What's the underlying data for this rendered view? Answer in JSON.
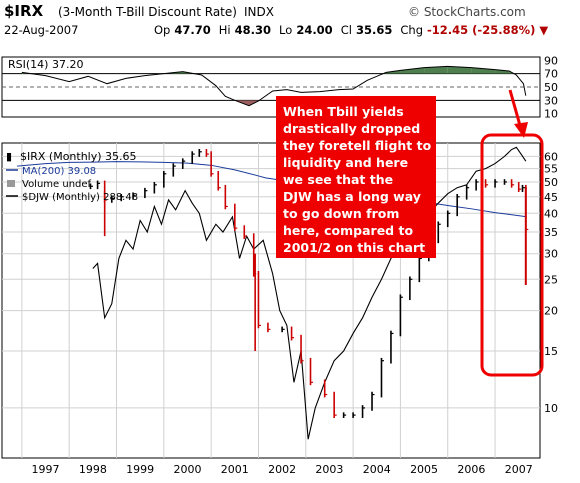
{
  "header": {
    "ticker": "$IRX",
    "description": "(3-Month T-Bill Discount Rate)",
    "exchange": "INDX",
    "brand": "© StockCharts.com",
    "date": "22-Aug-2007",
    "open_label": "Op",
    "open": "47.70",
    "high_label": "Hi",
    "high": "48.30",
    "low_label": "Lo",
    "low": "24.00",
    "close_label": "Cl",
    "close": "35.65",
    "chg_label": "Chg",
    "chg": "-12.45 (-25.88%)"
  },
  "colors": {
    "up": "#000000",
    "down": "#cc0000",
    "ma": "#1a3a9a",
    "djw": "#000000",
    "rsi_hi_fill": "#4f7f4f",
    "rsi_lo_fill": "#9a6060",
    "annot_bg": "#ee0000",
    "highlight": "#ee0000"
  },
  "chart_data": [
    {
      "type": "line",
      "title": "RSI(14) 37.20",
      "series": [
        {
          "name": "RSI(14)",
          "values": [
            {
              "x": 1997.0,
              "y": 72
            },
            {
              "x": 1997.5,
              "y": 67
            },
            {
              "x": 1998.0,
              "y": 58
            },
            {
              "x": 1998.4,
              "y": 66
            },
            {
              "x": 1998.8,
              "y": 55
            },
            {
              "x": 1999.2,
              "y": 63
            },
            {
              "x": 1999.6,
              "y": 67
            },
            {
              "x": 2000.0,
              "y": 70
            },
            {
              "x": 2000.4,
              "y": 73
            },
            {
              "x": 2000.8,
              "y": 68
            },
            {
              "x": 2001.1,
              "y": 52
            },
            {
              "x": 2001.3,
              "y": 36
            },
            {
              "x": 2001.5,
              "y": 30
            },
            {
              "x": 2001.8,
              "y": 22
            },
            {
              "x": 2002.0,
              "y": 29
            },
            {
              "x": 2002.3,
              "y": 44
            },
            {
              "x": 2002.6,
              "y": 46
            },
            {
              "x": 2002.9,
              "y": 42
            },
            {
              "x": 2003.3,
              "y": 43
            },
            {
              "x": 2003.7,
              "y": 46
            },
            {
              "x": 2004.0,
              "y": 47
            },
            {
              "x": 2004.3,
              "y": 60
            },
            {
              "x": 2004.7,
              "y": 72
            },
            {
              "x": 2005.0,
              "y": 75
            },
            {
              "x": 2005.5,
              "y": 79
            },
            {
              "x": 2006.0,
              "y": 81
            },
            {
              "x": 2006.5,
              "y": 79
            },
            {
              "x": 2007.0,
              "y": 76
            },
            {
              "x": 2007.3,
              "y": 74
            },
            {
              "x": 2007.45,
              "y": 68
            },
            {
              "x": 2007.6,
              "y": 55
            },
            {
              "x": 2007.65,
              "y": 37
            }
          ]
        }
      ],
      "levels": [
        30,
        50,
        70
      ],
      "y_ticks": [
        10,
        30,
        50,
        70,
        90
      ],
      "ylim": [
        5,
        95
      ]
    },
    {
      "type": "line",
      "title": "$IRX (Monthly) 35.65",
      "legend": [
        "$IRX (Monthly) 35.65",
        "MA(200) 39.08",
        "Volume undef",
        "$DJW (Monthly) 288.48"
      ],
      "x_ticks": [
        "1997",
        "1998",
        "1999",
        "2000",
        "2001",
        "2002",
        "2003",
        "2004",
        "2005",
        "2006",
        "2007"
      ],
      "y_ticks": [
        10,
        15,
        20,
        25,
        30,
        35,
        40,
        45,
        50,
        55,
        60
      ],
      "ylim": [
        7,
        66
      ],
      "series": [
        {
          "name": "$IRX (Monthly)",
          "values": [
            {
              "x": 1998.45,
              "y": 48.5
            },
            {
              "x": 1998.6,
              "y": 49.5
            },
            {
              "x": 1998.75,
              "y": 44
            },
            {
              "x": 1998.9,
              "y": 44.5
            },
            {
              "x": 1999.1,
              "y": 45
            },
            {
              "x": 1999.35,
              "y": 45.5
            },
            {
              "x": 1999.6,
              "y": 47
            },
            {
              "x": 1999.8,
              "y": 49
            },
            {
              "x": 2000.0,
              "y": 53
            },
            {
              "x": 2000.2,
              "y": 56
            },
            {
              "x": 2000.4,
              "y": 58
            },
            {
              "x": 2000.6,
              "y": 61
            },
            {
              "x": 2000.75,
              "y": 62
            },
            {
              "x": 2000.9,
              "y": 61
            },
            {
              "x": 2001.0,
              "y": 53
            },
            {
              "x": 2001.15,
              "y": 48
            },
            {
              "x": 2001.3,
              "y": 42
            },
            {
              "x": 2001.5,
              "y": 36
            },
            {
              "x": 2001.7,
              "y": 34
            },
            {
              "x": 2001.9,
              "y": 26
            },
            {
              "x": 2002.0,
              "y": 18
            },
            {
              "x": 2002.2,
              "y": 17.5
            },
            {
              "x": 2002.5,
              "y": 17.5
            },
            {
              "x": 2002.7,
              "y": 16.5
            },
            {
              "x": 2002.9,
              "y": 14
            },
            {
              "x": 2003.1,
              "y": 12
            },
            {
              "x": 2003.4,
              "y": 11
            },
            {
              "x": 2003.6,
              "y": 9.5
            },
            {
              "x": 2003.8,
              "y": 9.5
            },
            {
              "x": 2004.0,
              "y": 9.5
            },
            {
              "x": 2004.2,
              "y": 10
            },
            {
              "x": 2004.4,
              "y": 11
            },
            {
              "x": 2004.6,
              "y": 14
            },
            {
              "x": 2004.8,
              "y": 17
            },
            {
              "x": 2005.0,
              "y": 22
            },
            {
              "x": 2005.2,
              "y": 25
            },
            {
              "x": 2005.4,
              "y": 29
            },
            {
              "x": 2005.6,
              "y": 33
            },
            {
              "x": 2005.8,
              "y": 37
            },
            {
              "x": 2006.0,
              "y": 40
            },
            {
              "x": 2006.2,
              "y": 45
            },
            {
              "x": 2006.4,
              "y": 48
            },
            {
              "x": 2006.6,
              "y": 50
            },
            {
              "x": 2006.8,
              "y": 49
            },
            {
              "x": 2007.0,
              "y": 50
            },
            {
              "x": 2007.2,
              "y": 50
            },
            {
              "x": 2007.35,
              "y": 49
            },
            {
              "x": 2007.5,
              "y": 47.5
            },
            {
              "x": 2007.58,
              "y": 48
            },
            {
              "x": 2007.65,
              "y": 35.65
            }
          ]
        },
        {
          "name": "MA(200)",
          "values": [
            {
              "x": 1996.9,
              "y": 56
            },
            {
              "x": 1997.5,
              "y": 57
            },
            {
              "x": 1998.0,
              "y": 57.5
            },
            {
              "x": 1998.5,
              "y": 57.6
            },
            {
              "x": 1999.0,
              "y": 57.8
            },
            {
              "x": 1999.5,
              "y": 57.7
            },
            {
              "x": 2000.0,
              "y": 57.5
            },
            {
              "x": 2000.5,
              "y": 57.2
            },
            {
              "x": 2001.0,
              "y": 56.3
            },
            {
              "x": 2001.5,
              "y": 54.5
            },
            {
              "x": 2002.0,
              "y": 52.2
            },
            {
              "x": 2002.15,
              "y": 51.5
            },
            {
              "x": 2006.0,
              "y": 42.3
            },
            {
              "x": 2006.5,
              "y": 41.3
            },
            {
              "x": 2007.0,
              "y": 40.2
            },
            {
              "x": 2007.65,
              "y": 39.08
            }
          ]
        },
        {
          "name": "$DJW (Monthly)",
          "values": [
            {
              "x": 1998.5,
              "y": 27
            },
            {
              "x": 1998.6,
              "y": 28
            },
            {
              "x": 1998.75,
              "y": 19
            },
            {
              "x": 1998.9,
              "y": 21
            },
            {
              "x": 1999.05,
              "y": 29
            },
            {
              "x": 1999.2,
              "y": 33
            },
            {
              "x": 1999.35,
              "y": 31
            },
            {
              "x": 1999.5,
              "y": 38
            },
            {
              "x": 1999.65,
              "y": 35
            },
            {
              "x": 1999.8,
              "y": 42
            },
            {
              "x": 1999.95,
              "y": 37
            },
            {
              "x": 2000.1,
              "y": 44
            },
            {
              "x": 2000.25,
              "y": 41
            },
            {
              "x": 2000.45,
              "y": 47
            },
            {
              "x": 2000.6,
              "y": 43
            },
            {
              "x": 2000.75,
              "y": 40
            },
            {
              "x": 2000.9,
              "y": 33
            },
            {
              "x": 2001.1,
              "y": 37
            },
            {
              "x": 2001.25,
              "y": 35
            },
            {
              "x": 2001.45,
              "y": 39
            },
            {
              "x": 2001.6,
              "y": 29
            },
            {
              "x": 2001.75,
              "y": 34
            },
            {
              "x": 2001.9,
              "y": 31
            },
            {
              "x": 2002.1,
              "y": 33
            },
            {
              "x": 2002.3,
              "y": 26
            },
            {
              "x": 2002.45,
              "y": 20
            },
            {
              "x": 2002.6,
              "y": 18
            },
            {
              "x": 2002.75,
              "y": 12
            },
            {
              "x": 2002.9,
              "y": 15
            },
            {
              "x": 2003.05,
              "y": 8
            },
            {
              "x": 2003.2,
              "y": 10
            },
            {
              "x": 2003.4,
              "y": 12
            },
            {
              "x": 2003.6,
              "y": 14
            },
            {
              "x": 2003.8,
              "y": 15
            },
            {
              "x": 2004.0,
              "y": 17
            },
            {
              "x": 2004.2,
              "y": 19
            },
            {
              "x": 2004.4,
              "y": 22
            },
            {
              "x": 2004.6,
              "y": 25
            },
            {
              "x": 2004.8,
              "y": 29
            },
            {
              "x": 2005.0,
              "y": 32
            },
            {
              "x": 2005.2,
              "y": 33
            },
            {
              "x": 2005.4,
              "y": 36
            },
            {
              "x": 2005.6,
              "y": 40
            },
            {
              "x": 2005.8,
              "y": 43
            },
            {
              "x": 2006.0,
              "y": 46
            },
            {
              "x": 2006.2,
              "y": 48
            },
            {
              "x": 2006.4,
              "y": 49
            },
            {
              "x": 2006.6,
              "y": 54
            },
            {
              "x": 2006.8,
              "y": 55
            },
            {
              "x": 2007.0,
              "y": 57
            },
            {
              "x": 2007.2,
              "y": 60
            },
            {
              "x": 2007.35,
              "y": 63
            },
            {
              "x": 2007.45,
              "y": 64
            },
            {
              "x": 2007.55,
              "y": 61
            },
            {
              "x": 2007.65,
              "y": 58
            }
          ]
        }
      ]
    }
  ],
  "annotation": [
    "When Tbill yields",
    "drastically dropped",
    "they foretell flight to",
    "liquidity and here",
    "we see that the",
    "DJW has a long way",
    "to go down from",
    "here, compared to",
    "2001/2 on this chart"
  ]
}
